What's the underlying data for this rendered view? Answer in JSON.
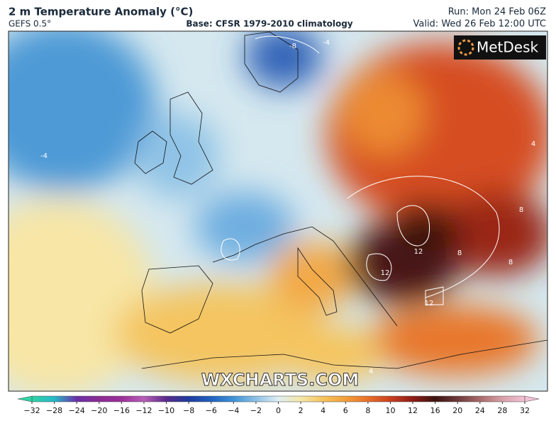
{
  "header": {
    "title": "2 m Temperature Anomaly (°C)",
    "model": "GEFS 0.5°",
    "base": "Base: CFSR 1979-2010 climatology",
    "run": "Run: Mon 24 Feb 06Z",
    "valid": "Valid: Wed 26 Feb 12:00 UTC"
  },
  "logo": "MetDesk",
  "watermark": "WXCHARTS.COM",
  "map": {
    "contour_labels": [
      -4,
      -8,
      -4,
      12,
      12,
      12,
      8,
      8,
      8,
      4,
      4
    ]
  },
  "colorbar": {
    "ticks": [
      {
        "value": -32,
        "label": "−32"
      },
      {
        "value": -28,
        "label": "−28"
      },
      {
        "value": -24,
        "label": "−24"
      },
      {
        "value": -20,
        "label": "−20"
      },
      {
        "value": -16,
        "label": "−16"
      },
      {
        "value": -12,
        "label": "−12"
      },
      {
        "value": -10,
        "label": "−10"
      },
      {
        "value": -8,
        "label": "−8"
      },
      {
        "value": -6,
        "label": "−6"
      },
      {
        "value": -4,
        "label": "−4"
      },
      {
        "value": -2,
        "label": "−2"
      },
      0,
      2,
      4,
      6,
      8,
      10,
      12,
      16,
      20,
      24,
      28,
      32
    ],
    "colors": [
      "#2fd3a5",
      "#27b9c8",
      "#6a2fa8",
      "#8a2c93",
      "#9d2f9a",
      "#b65fb8",
      "#5a2a8a",
      "#1e3c9e",
      "#1f62c0",
      "#3f93d6",
      "#8cc1e6",
      "#dfeef3",
      "#f4e7a8",
      "#f6c45c",
      "#f2a03a",
      "#e8702a",
      "#c9401f",
      "#8e1d16",
      "#3d1410",
      "#6e3a3a",
      "#a86a6a",
      "#d8a0a8",
      "#f2c2d6"
    ]
  }
}
